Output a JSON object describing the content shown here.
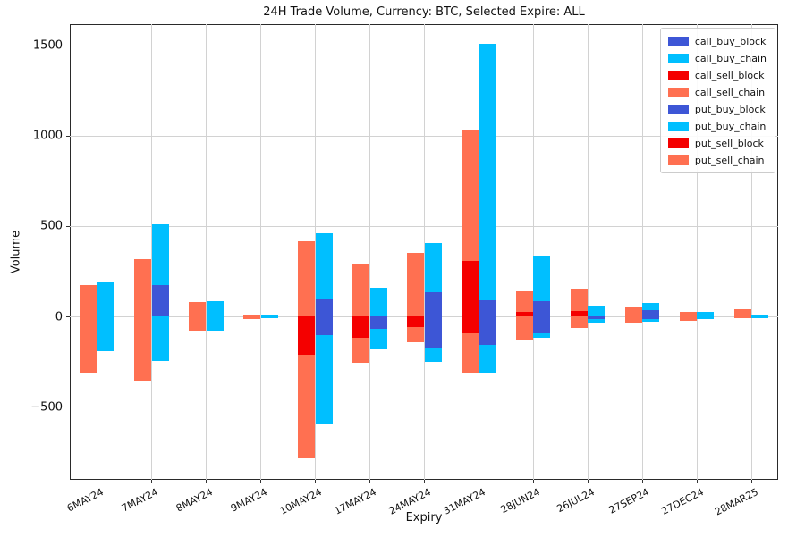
{
  "chart_data": {
    "type": "bar",
    "stacked": true,
    "title": "24H Trade Volume, Currency: BTC, Selected Expire: ALL",
    "xlabel": "Expiry",
    "ylabel": "Volume",
    "ylim": [
      -905,
      1618
    ],
    "yticks": [
      -500,
      0,
      500,
      1000,
      1500
    ],
    "grid": true,
    "legend_position": "upper right",
    "categories": [
      "6MAY24",
      "7MAY24",
      "8MAY24",
      "9MAY24",
      "10MAY24",
      "17MAY24",
      "24MAY24",
      "31MAY24",
      "28JUN24",
      "26JUL24",
      "27SEP24",
      "27DEC24",
      "28MAR25"
    ],
    "series": [
      {
        "name": "call_buy_block",
        "color": "#3D56D6",
        "hatch": false,
        "hatch_color": "",
        "bar": "buy",
        "values": [
          0,
          175,
          0,
          0,
          95,
          0,
          135,
          90,
          85,
          0,
          35,
          0,
          0
        ]
      },
      {
        "name": "call_buy_chain",
        "color": "#00BFFF",
        "hatch": false,
        "hatch_color": "",
        "bar": "buy",
        "values": [
          190,
          335,
          85,
          5,
          365,
          160,
          270,
          1420,
          245,
          60,
          40,
          25,
          10
        ]
      },
      {
        "name": "call_sell_block",
        "color": "#F40000",
        "hatch": false,
        "hatch_color": "",
        "bar": "sell",
        "values": [
          0,
          0,
          0,
          0,
          0,
          0,
          0,
          305,
          25,
          30,
          0,
          0,
          0
        ]
      },
      {
        "name": "call_sell_chain",
        "color": "#FF7051",
        "hatch": false,
        "hatch_color": "",
        "bar": "sell",
        "values": [
          175,
          315,
          80,
          5,
          415,
          285,
          350,
          725,
          115,
          125,
          50,
          25,
          40
        ]
      },
      {
        "name": "put_buy_block",
        "color": "#3D56D6",
        "hatch": true,
        "hatch_color": "#1b2f9e",
        "bar": "buy",
        "values": [
          0,
          0,
          0,
          0,
          -105,
          -70,
          -175,
          -160,
          -95,
          -15,
          -15,
          0,
          0
        ]
      },
      {
        "name": "put_buy_chain",
        "color": "#00BFFF",
        "hatch": true,
        "hatch_color": "#2246CE",
        "bar": "buy",
        "values": [
          -195,
          -245,
          -80,
          -12,
          -495,
          -115,
          -75,
          -150,
          -25,
          -25,
          -15,
          -15,
          -8
        ]
      },
      {
        "name": "put_sell_block",
        "color": "#F40000",
        "hatch": true,
        "hatch_color": "#A00000",
        "bar": "sell",
        "values": [
          0,
          0,
          0,
          0,
          -210,
          -120,
          -60,
          -95,
          0,
          0,
          0,
          0,
          0
        ]
      },
      {
        "name": "put_sell_chain",
        "color": "#FF7051",
        "hatch": true,
        "hatch_color": "#D22C15",
        "bar": "sell",
        "values": [
          -310,
          -355,
          -85,
          -15,
          -575,
          -135,
          -85,
          -215,
          -135,
          -65,
          -35,
          -25,
          -10
        ]
      }
    ]
  }
}
